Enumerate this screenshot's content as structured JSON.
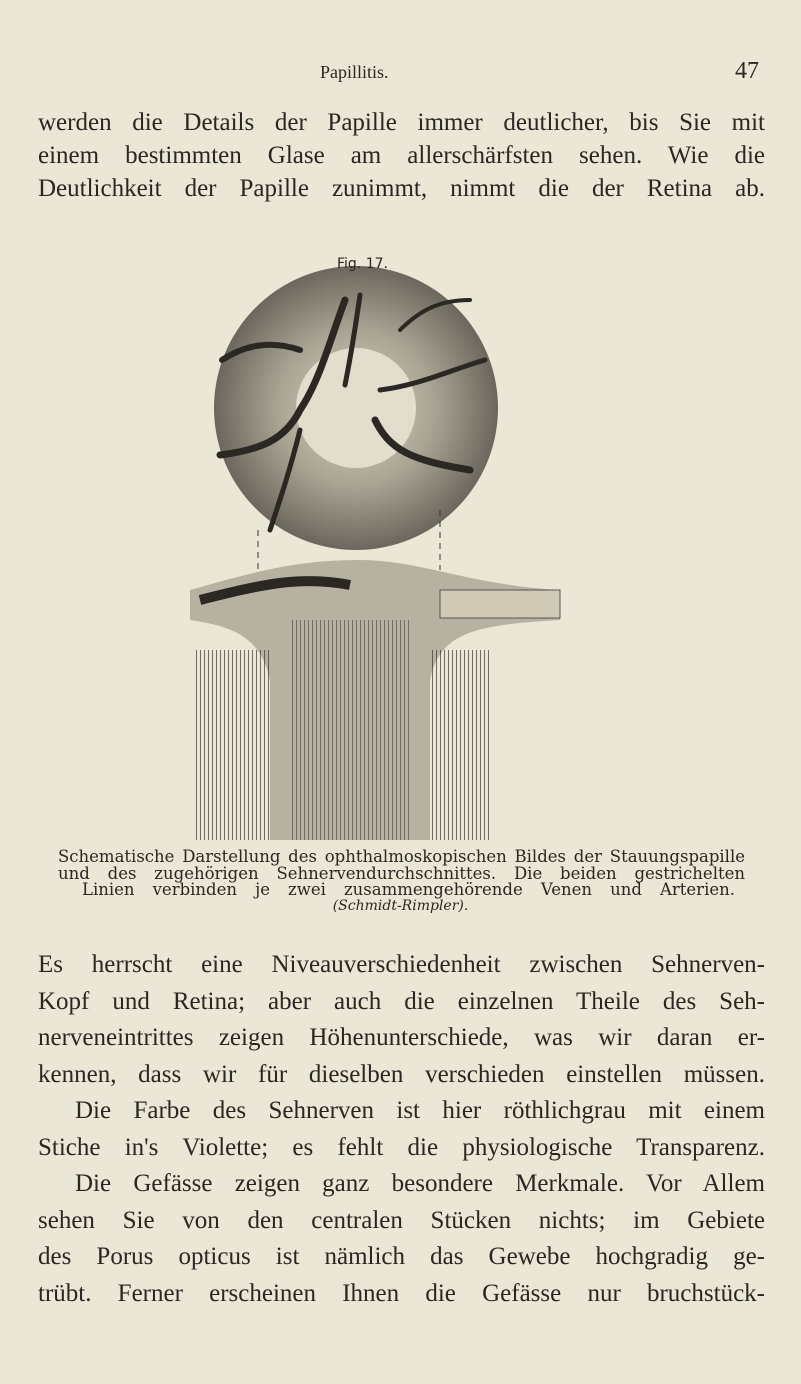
{
  "header": {
    "title": "Papillitis.",
    "page_number": "47"
  },
  "text_top": {
    "lines": [
      "werden die Details der Papille immer deutlicher, bis Sie mit",
      "einem bestimmten Glase am allerschärfsten sehen. Wie die",
      "Deutlichkeit der Papille zunimmt, nimmt die der Retina ab."
    ]
  },
  "figure": {
    "label": "Fig. 17.",
    "caption": {
      "lines": [
        "Schematische Darstellung des ophthalmoskopischen Bildes der Stauungspapille",
        "und des zugehörigen Sehnervendurchschnittes. Die beiden gestrichelten",
        "Linien verbinden je zwei zusammengehörende Venen und Arterien."
      ],
      "credit": "(Schmidt-Rimpler)."
    }
  },
  "body": {
    "lines": [
      "Es herrscht eine Niveauverschiedenheit zwischen Sehnerven-",
      "Kopf und Retina; aber auch die einzelnen Theile des Seh-",
      "nerveneintrittes zeigen Höhenunterschiede, was wir daran er-",
      "kennen, dass wir für dieselben verschieden einstellen müssen.",
      "Die Farbe des Sehnerven ist hier röthlichgrau mit einem",
      "Stiche in's Violette; es fehlt die physiologische Transparenz.",
      "Die Gefässe zeigen ganz besondere Merkmale. Vor Allem",
      "sehen Sie von den centralen Stücken nichts; im Gebiete",
      "des Porus opticus ist nämlich das Gewebe hochgradig ge-",
      "trübt. Ferner erscheinen Ihnen die Gefässe nur bruchstück-"
    ]
  }
}
